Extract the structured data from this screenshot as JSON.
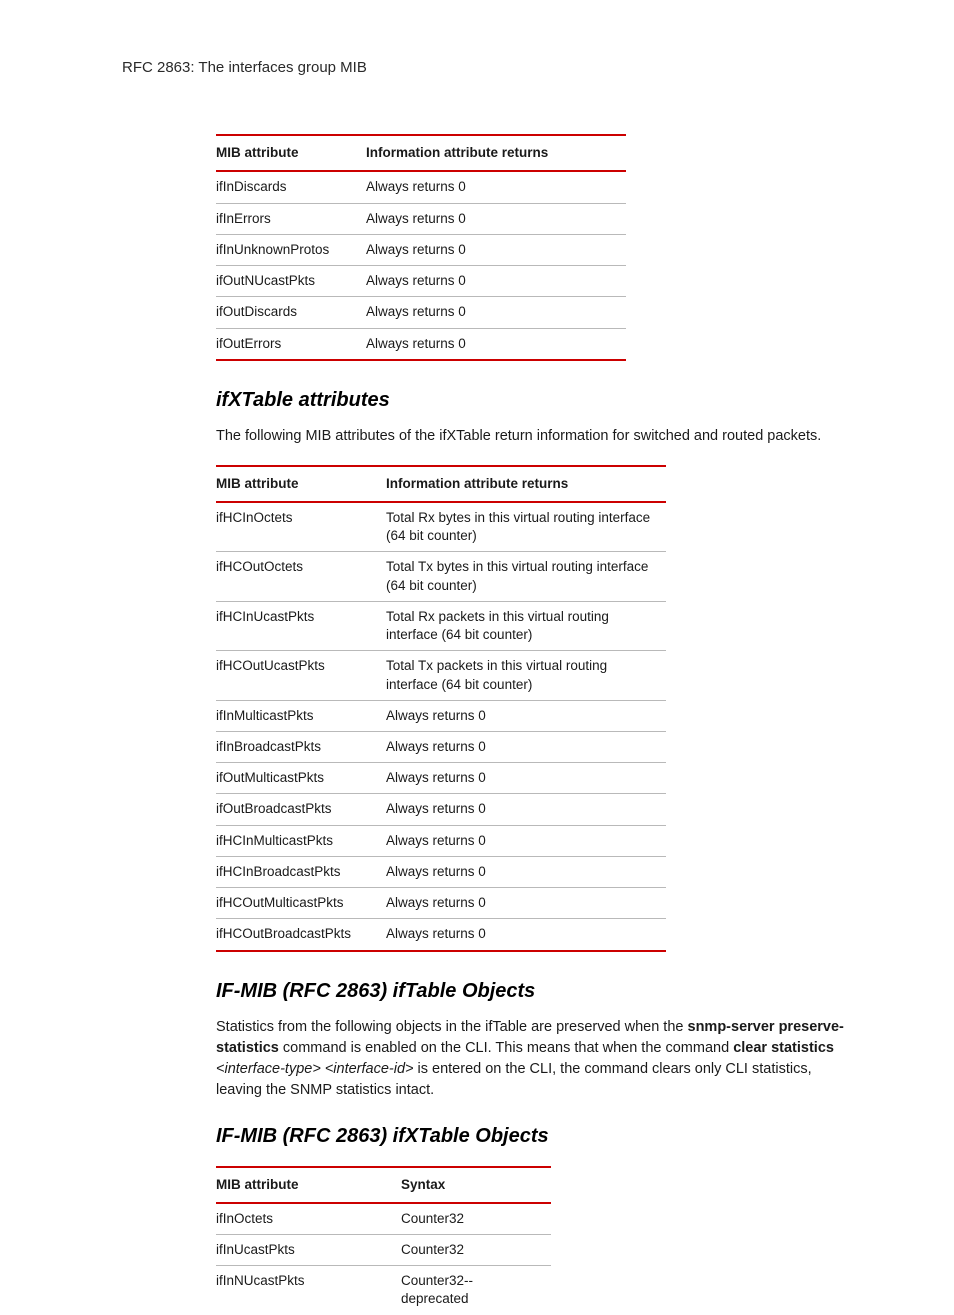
{
  "colors": {
    "rule": "#cc0000",
    "rowBorder": "#b9b9b9",
    "text": "#1a1a1a",
    "background": "#ffffff"
  },
  "runningHead": "RFC 2863: The interfaces group MIB",
  "table1": {
    "headers": [
      "MIB attribute",
      "Information attribute returns"
    ],
    "rows": [
      [
        "ifInDiscards",
        "Always returns 0"
      ],
      [
        "ifInErrors",
        "Always returns 0"
      ],
      [
        "ifInUnknownProtos",
        "Always returns 0"
      ],
      [
        "ifOutNUcastPkts",
        "Always returns 0"
      ],
      [
        "ifOutDiscards",
        "Always returns 0"
      ],
      [
        "ifOutErrors",
        "Always returns 0"
      ]
    ]
  },
  "section1": {
    "title": "ifXTable attributes",
    "para": "The following MIB attributes of the ifXTable return information for switched and routed packets."
  },
  "table2": {
    "headers": [
      "MIB attribute",
      "Information attribute returns"
    ],
    "rows": [
      [
        "ifHCInOctets",
        "Total Rx bytes in this virtual routing interface (64 bit counter)"
      ],
      [
        "ifHCOutOctets",
        "Total Tx bytes in this virtual routing interface (64 bit counter)"
      ],
      [
        "ifHCInUcastPkts",
        "Total Rx packets in this virtual routing interface (64 bit counter)"
      ],
      [
        "ifHCOutUcastPkts",
        "Total Tx packets in this virtual routing interface (64 bit counter)"
      ],
      [
        "ifInMulticastPkts",
        "Always returns 0"
      ],
      [
        "ifInBroadcastPkts",
        "Always returns 0"
      ],
      [
        "ifOutMulticastPkts",
        "Always returns 0"
      ],
      [
        "ifOutBroadcastPkts",
        "Always returns 0"
      ],
      [
        "ifHCInMulticastPkts",
        "Always returns 0"
      ],
      [
        "ifHCInBroadcastPkts",
        "Always returns 0"
      ],
      [
        "ifHCOutMulticastPkts",
        "Always returns 0"
      ],
      [
        "ifHCOutBroadcastPkts",
        "Always returns 0"
      ]
    ]
  },
  "section2": {
    "title": "IF-MIB (RFC 2863) ifTable Objects",
    "para_pre": "Statistics from the following objects in the ifTable are preserved when the ",
    "para_bold1": "snmp-server preserve-statistics",
    "para_mid1": " command is enabled on the CLI. This means that when the command ",
    "para_bold2": "clear statistics",
    "para_mid2": " ",
    "para_ital": "<interface-type> <interface-id>",
    "para_post": " is entered on the CLI, the command clears only CLI statistics, leaving the SNMP statistics intact."
  },
  "section3": {
    "title": "IF-MIB (RFC 2863) ifXTable Objects"
  },
  "table3": {
    "headers": [
      "MIB attribute",
      "Syntax"
    ],
    "rows": [
      [
        "ifInOctets",
        "Counter32"
      ],
      [
        "ifInUcastPkts",
        "Counter32"
      ],
      [
        "ifInNUcastPkts",
        "Counter32-- deprecated"
      ]
    ]
  }
}
